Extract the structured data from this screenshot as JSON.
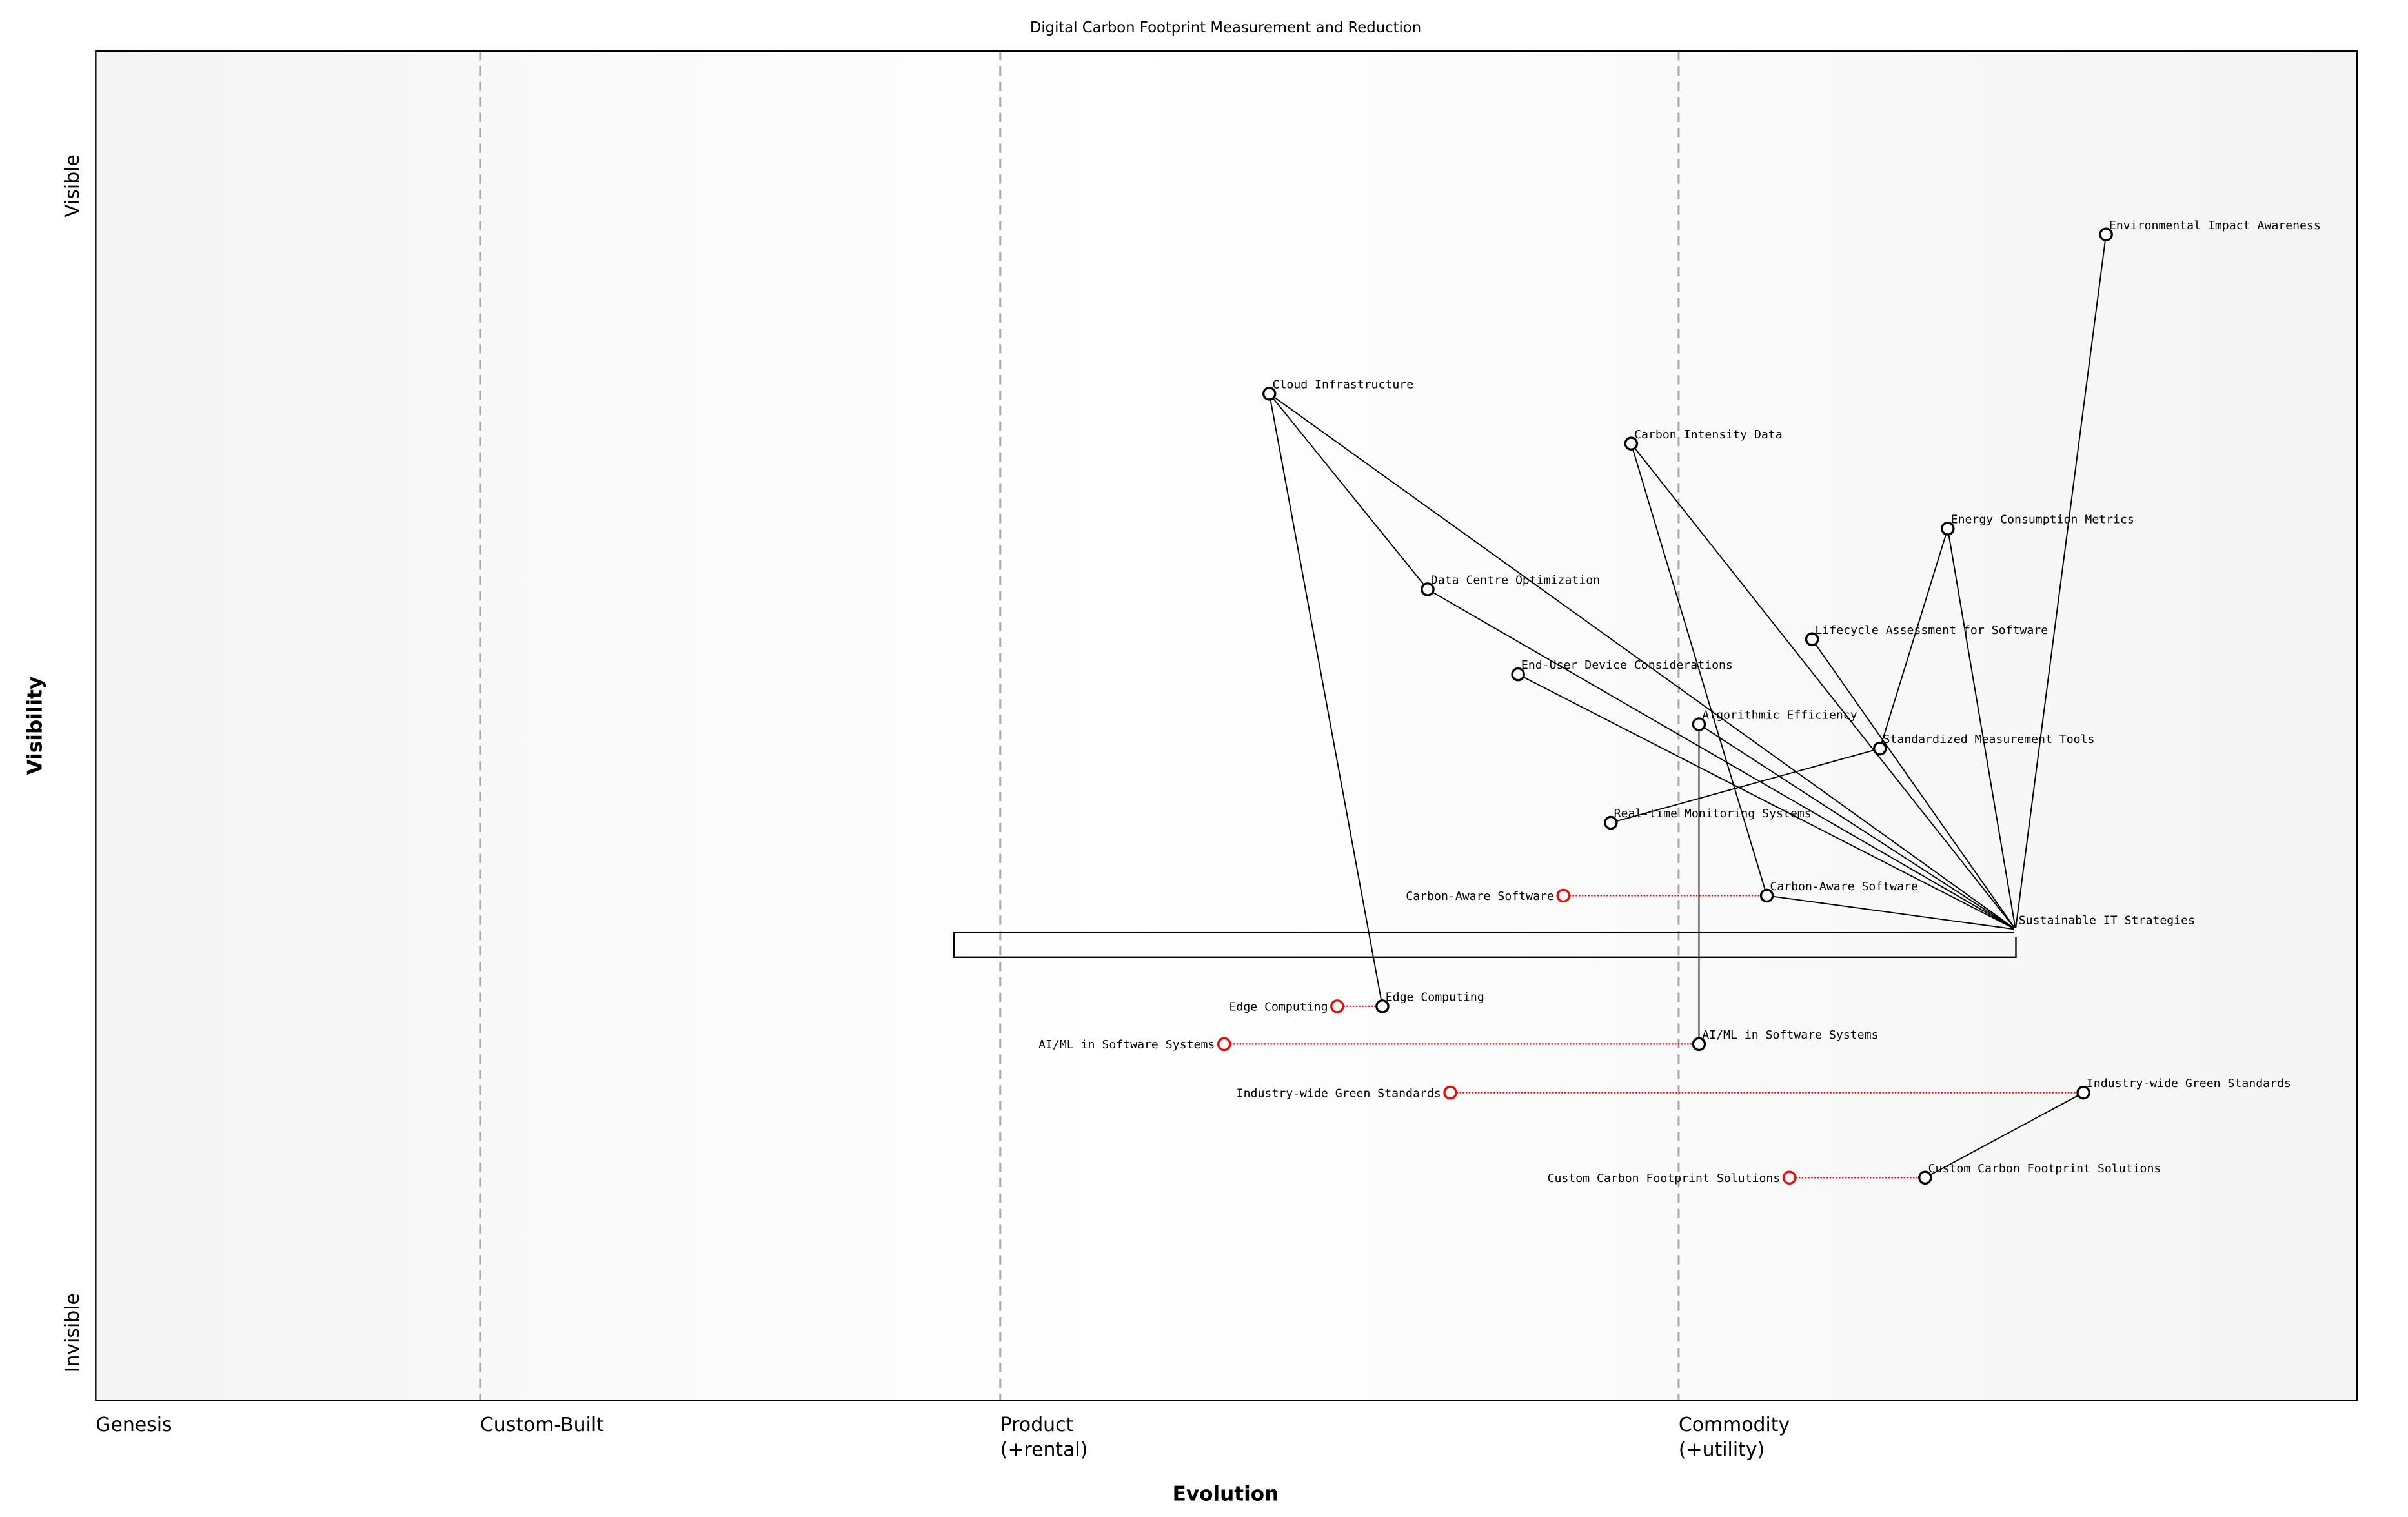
{
  "chart_data": {
    "type": "wardley-map",
    "title": "Digital Carbon Footprint Measurement and Reduction",
    "xlabel": "Evolution",
    "ylabel": "Visibility",
    "xlim": [
      0,
      1
    ],
    "ylim": [
      0,
      1
    ],
    "x_ticks": [
      {
        "value": 0,
        "label": "Genesis"
      },
      {
        "value": 0.17,
        "label": "Custom-Built"
      },
      {
        "value": 0.4,
        "label": "Product\n(+rental)"
      },
      {
        "value": 0.7,
        "label": "Commodity\n(+utility)"
      }
    ],
    "y_ticks": [
      {
        "value": 0.9,
        "label": "Visible"
      },
      {
        "value": 0.05,
        "label": "Invisible"
      }
    ],
    "stage_dividers": [
      0.17,
      0.4,
      0.7
    ],
    "colors": {
      "component": "#000000",
      "evolving_from": "#ff0000",
      "link": "#000000"
    },
    "components": [
      {
        "name": "Environmental Impact Awareness",
        "evolution": 0.889,
        "visibility": 0.864
      },
      {
        "name": "Cloud Infrastructure",
        "evolution": 0.519,
        "visibility": 0.746
      },
      {
        "name": "Carbon Intensity Data",
        "evolution": 0.679,
        "visibility": 0.709
      },
      {
        "name": "Energy Consumption Metrics",
        "evolution": 0.819,
        "visibility": 0.646
      },
      {
        "name": "Data Centre Optimization",
        "evolution": 0.589,
        "visibility": 0.601
      },
      {
        "name": "Lifecycle Assessment for Software",
        "evolution": 0.759,
        "visibility": 0.564
      },
      {
        "name": "End-User Device Considerations",
        "evolution": 0.629,
        "visibility": 0.538
      },
      {
        "name": "Algorithmic Efficiency",
        "evolution": 0.709,
        "visibility": 0.501
      },
      {
        "name": "Standardized Measurement Tools",
        "evolution": 0.789,
        "visibility": 0.483
      },
      {
        "name": "Real-time Monitoring Systems",
        "evolution": 0.67,
        "visibility": 0.428
      },
      {
        "name": "Carbon-Aware Software",
        "evolution": 0.739,
        "visibility": 0.374
      },
      {
        "name": "Sustainable IT Strategies",
        "evolution": 0.849,
        "visibility": 0.349,
        "anchor": true
      },
      {
        "name": "Edge Computing",
        "evolution": 0.569,
        "visibility": 0.292
      },
      {
        "name": "AI/ML in Software Systems",
        "evolution": 0.709,
        "visibility": 0.264
      },
      {
        "name": "Industry-wide Green Standards",
        "evolution": 0.879,
        "visibility": 0.228
      },
      {
        "name": "Custom Carbon Footprint Solutions",
        "evolution": 0.809,
        "visibility": 0.165
      }
    ],
    "evolving_from": [
      {
        "name": "Carbon-Aware Software",
        "evolution": 0.649,
        "to": 0.739,
        "visibility": 0.374
      },
      {
        "name": "Edge Computing",
        "evolution": 0.549,
        "to": 0.569,
        "visibility": 0.292
      },
      {
        "name": "AI/ML in Software Systems",
        "evolution": 0.499,
        "to": 0.709,
        "visibility": 0.264
      },
      {
        "name": "Industry-wide Green Standards",
        "evolution": 0.599,
        "to": 0.879,
        "visibility": 0.228
      },
      {
        "name": "Custom Carbon Footprint Solutions",
        "evolution": 0.749,
        "to": 0.809,
        "visibility": 0.165
      }
    ],
    "links": [
      [
        "Sustainable IT Strategies",
        "Cloud Infrastructure"
      ],
      [
        "Sustainable IT Strategies",
        "Data Centre Optimization"
      ],
      [
        "Sustainable IT Strategies",
        "End-User Device Considerations"
      ],
      [
        "Sustainable IT Strategies",
        "Algorithmic Efficiency"
      ],
      [
        "Sustainable IT Strategies",
        "Carbon Intensity Data"
      ],
      [
        "Sustainable IT Strategies",
        "Lifecycle Assessment for Software"
      ],
      [
        "Sustainable IT Strategies",
        "Energy Consumption Metrics"
      ],
      [
        "Sustainable IT Strategies",
        "Environmental Impact Awareness"
      ],
      [
        "Sustainable IT Strategies",
        "Carbon-Aware Software"
      ],
      [
        "Cloud Infrastructure",
        "Data Centre Optimization"
      ],
      [
        "Cloud Infrastructure",
        "Edge Computing"
      ],
      [
        "Carbon Intensity Data",
        "Carbon-Aware Software"
      ],
      [
        "Energy Consumption Metrics",
        "Standardized Measurement Tools"
      ],
      [
        "Standardized Measurement Tools",
        "Real-time Monitoring Systems"
      ],
      [
        "Algorithmic Efficiency",
        "AI/ML in Software Systems"
      ],
      [
        "Industry-wide Green Standards",
        "Custom Carbon Footprint Solutions"
      ]
    ],
    "grid": false,
    "legend": "none"
  }
}
